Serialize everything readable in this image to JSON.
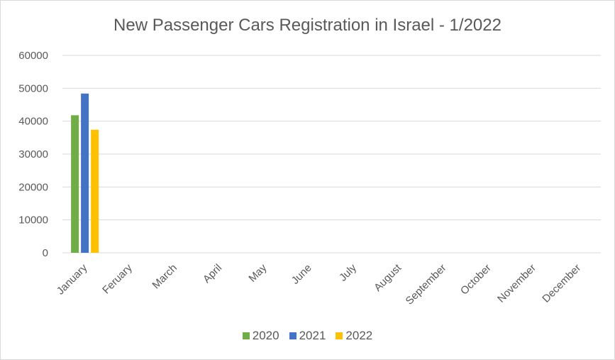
{
  "chart_data": {
    "type": "bar",
    "title": "New Passenger Cars Registration in Israel - 1/2022",
    "categories": [
      "January",
      "Feruary",
      "March",
      "April",
      "May",
      "June",
      "July",
      "August",
      "September",
      "October",
      "November",
      "December"
    ],
    "series": [
      {
        "name": "2020",
        "color": "#70ad47",
        "values": [
          41800,
          null,
          null,
          null,
          null,
          null,
          null,
          null,
          null,
          null,
          null,
          null
        ]
      },
      {
        "name": "2021",
        "color": "#4472c4",
        "values": [
          48400,
          null,
          null,
          null,
          null,
          null,
          null,
          null,
          null,
          null,
          null,
          null
        ]
      },
      {
        "name": "2022",
        "color": "#ffc000",
        "values": [
          37400,
          null,
          null,
          null,
          null,
          null,
          null,
          null,
          null,
          null,
          null,
          null
        ]
      }
    ],
    "ylim": [
      0,
      60000
    ],
    "yticks": [
      0,
      10000,
      20000,
      30000,
      40000,
      50000,
      60000
    ],
    "grid": true,
    "legend_position": "bottom"
  }
}
